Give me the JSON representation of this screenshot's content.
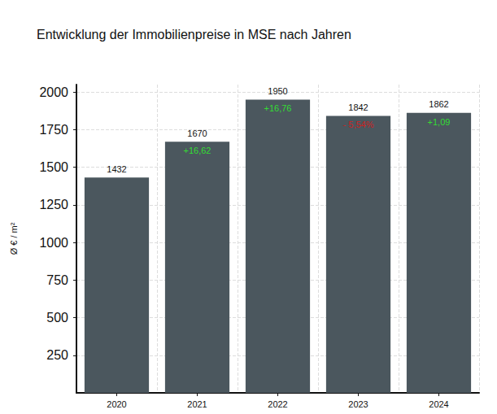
{
  "chart_data": {
    "type": "bar",
    "title": "Entwicklung der Immobilienpreise in MSE nach Jahren",
    "y_label": "Ø € / m²",
    "categories": [
      "2020",
      "2021",
      "2022",
      "2023",
      "2024"
    ],
    "values": [
      1432,
      1670,
      1950,
      1842,
      1862
    ],
    "color": "#4b575e",
    "ylim": [
      0,
      2050
    ],
    "yticks": [
      250,
      500,
      750,
      1000,
      1250,
      1500,
      1750,
      2000
    ],
    "grid": true,
    "data_labels": true,
    "annotations": [
      {
        "category": "2021",
        "text": "+16,62",
        "color": "#33dd33"
      },
      {
        "category": "2022",
        "text": "+16,76",
        "color": "#33dd33"
      },
      {
        "category": "2023",
        "text": "- 5,54%",
        "color": "#cc2222"
      },
      {
        "category": "2024",
        "text": "+1,09",
        "color": "#33dd33"
      }
    ]
  }
}
